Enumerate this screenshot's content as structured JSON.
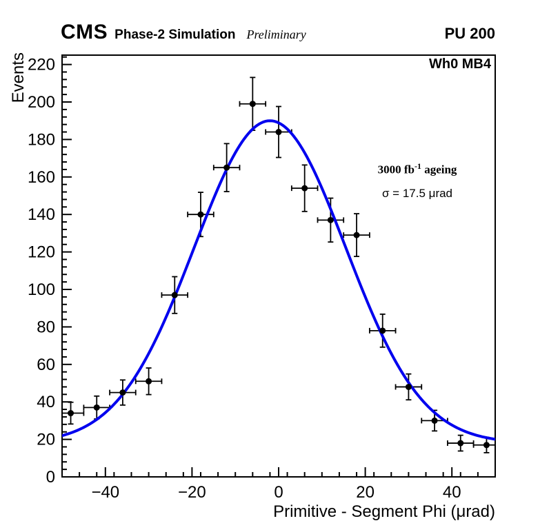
{
  "header": {
    "cms": "CMS",
    "subtitle": "Phase-2 Simulation",
    "preliminary": "Preliminary",
    "pileup": "PU 200"
  },
  "plot": {
    "region_label": "Wh0 MB4"
  },
  "annotation": {
    "lumi_prefix": "3000 fb",
    "lumi_exponent": "-1",
    "lumi_suffix": " ageing",
    "sigma_text": "σ = 17.5 μrad"
  },
  "chart_data": {
    "type": "scatter",
    "title": "",
    "xlabel": "Primitive - Segment Phi (μrad)",
    "ylabel": "Events",
    "xlim": [
      -50,
      50
    ],
    "ylim": [
      0,
      225
    ],
    "grid": false,
    "legend_position": "none",
    "x_ticks": [
      {
        "v": -40,
        "label": "−40"
      },
      {
        "v": -20,
        "label": "−20"
      },
      {
        "v": 0,
        "label": "0"
      },
      {
        "v": 20,
        "label": "20"
      },
      {
        "v": 40,
        "label": "40"
      }
    ],
    "y_ticks": [
      {
        "v": 0,
        "label": "0"
      },
      {
        "v": 20,
        "label": "20"
      },
      {
        "v": 40,
        "label": "40"
      },
      {
        "v": 60,
        "label": "60"
      },
      {
        "v": 80,
        "label": "80"
      },
      {
        "v": 100,
        "label": "100"
      },
      {
        "v": 120,
        "label": "120"
      },
      {
        "v": 140,
        "label": "140"
      },
      {
        "v": 160,
        "label": "160"
      },
      {
        "v": 180,
        "label": "180"
      },
      {
        "v": 200,
        "label": "200"
      },
      {
        "v": 220,
        "label": "220"
      }
    ],
    "x_minor_step": 4,
    "y_minor_step": 4,
    "points": [
      {
        "x": -48,
        "y": 34,
        "xerr": 3,
        "yerr": 5.8
      },
      {
        "x": -42,
        "y": 37,
        "xerr": 3,
        "yerr": 6.1
      },
      {
        "x": -36,
        "y": 45,
        "xerr": 3,
        "yerr": 6.7
      },
      {
        "x": -30,
        "y": 51,
        "xerr": 3,
        "yerr": 7.1
      },
      {
        "x": -24,
        "y": 97,
        "xerr": 3,
        "yerr": 9.8
      },
      {
        "x": -18,
        "y": 140,
        "xerr": 3,
        "yerr": 11.8
      },
      {
        "x": -12,
        "y": 165,
        "xerr": 3,
        "yerr": 12.8
      },
      {
        "x": -6,
        "y": 199,
        "xerr": 3,
        "yerr": 14.1
      },
      {
        "x": 0,
        "y": 184,
        "xerr": 3,
        "yerr": 13.6
      },
      {
        "x": 6,
        "y": 154,
        "xerr": 3,
        "yerr": 12.4
      },
      {
        "x": 12,
        "y": 137,
        "xerr": 3,
        "yerr": 11.7
      },
      {
        "x": 18,
        "y": 129,
        "xerr": 3,
        "yerr": 11.4
      },
      {
        "x": 24,
        "y": 78,
        "xerr": 3,
        "yerr": 8.8
      },
      {
        "x": 30,
        "y": 48,
        "xerr": 3,
        "yerr": 6.9
      },
      {
        "x": 36,
        "y": 30,
        "xerr": 3,
        "yerr": 5.5
      },
      {
        "x": 42,
        "y": 18,
        "xerr": 3,
        "yerr": 4.2
      },
      {
        "x": 48,
        "y": 17,
        "xerr": 3,
        "yerr": 4.1
      }
    ],
    "fit": {
      "model": "constant + gaussian",
      "constant": 18,
      "amplitude": 172,
      "mean": -2,
      "sigma": 17.5,
      "color": "#0000ee",
      "line_width": 4
    },
    "marker": {
      "color": "#000000",
      "radius": 4.5
    }
  }
}
